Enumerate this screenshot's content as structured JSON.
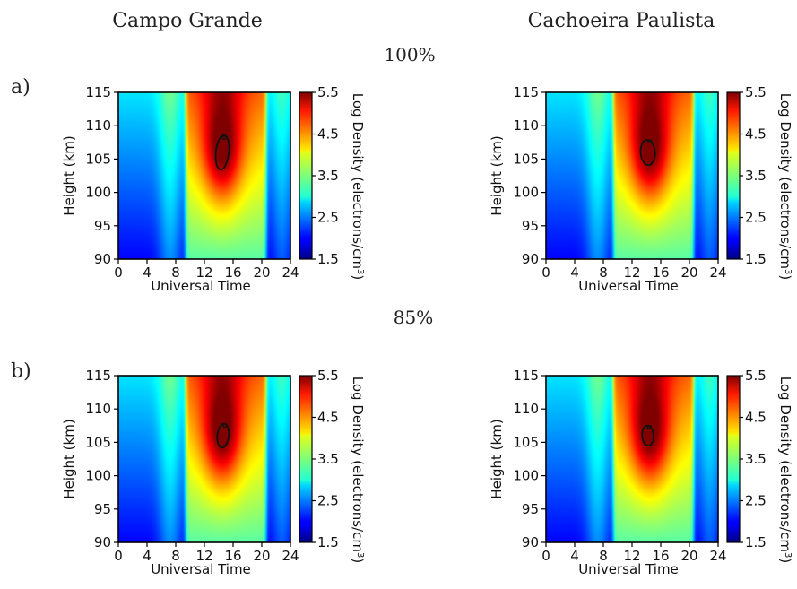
{
  "figure": {
    "column_titles": [
      "Campo Grande",
      "Cachoeira Paulista"
    ],
    "row_labels": [
      "a)",
      "b)"
    ],
    "row_titles": [
      "100%",
      "85%"
    ]
  },
  "axes": {
    "xlabel": "Universal Time",
    "ylabel": "Height (km)",
    "colorbar_label": "Log Density (electrons/cm",
    "colorbar_label_sup": "3",
    "colorbar_label_close": ")",
    "xticks": [
      0,
      4,
      8,
      12,
      16,
      20,
      24
    ],
    "yticks": [
      90,
      95,
      100,
      105,
      110,
      115
    ],
    "cbar_ticks": [
      "1.5",
      "2.5",
      "3.5",
      "4.5",
      "5.5"
    ]
  },
  "colormap": "jet",
  "chart_data": [
    {
      "type": "heatmap",
      "panel": "a) 100% Campo Grande",
      "title": "Campo Grande",
      "xlabel": "Universal Time",
      "ylabel": "Height (km)",
      "xlim": [
        0,
        24
      ],
      "ylim": [
        90,
        115
      ],
      "colorbar": {
        "label": "Log Density (electrons/cm3)",
        "range": [
          1.5,
          5.5
        ]
      },
      "description_values": {
        "peak_time_ut": 14.5,
        "peak_height_km": 106,
        "peak_log_density": 5.5,
        "sunrise_ut": 9.5,
        "sunset_ut": 20.5,
        "night_min_log_density": 2.0
      },
      "contour": {
        "center": [
          14.5,
          106
        ],
        "hw": 0.9,
        "hh": 2.6,
        "tilt": 0.3,
        "blob": true
      }
    },
    {
      "type": "heatmap",
      "panel": "a) 100% Cachoeira Paulista",
      "title": "Cachoeira Paulista",
      "xlabel": "Universal Time",
      "ylabel": "Height (km)",
      "xlim": [
        0,
        24
      ],
      "ylim": [
        90,
        115
      ],
      "colorbar": {
        "label": "Log Density (electrons/cm3)",
        "range": [
          1.5,
          5.5
        ]
      },
      "description_values": {
        "peak_time_ut": 14.5,
        "peak_height_km": 106,
        "peak_log_density": 5.5,
        "sunrise_ut": 9.5,
        "sunset_ut": 20.5,
        "night_min_log_density": 2.0
      },
      "contour": {
        "center": [
          14.2,
          106
        ],
        "hw": 1.0,
        "hh": 1.9,
        "tilt": -0.2,
        "blob": true
      }
    },
    {
      "type": "heatmap",
      "panel": "b) 85% Campo Grande",
      "title": "Campo Grande",
      "xlabel": "Universal Time",
      "ylabel": "Height (km)",
      "xlim": [
        0,
        24
      ],
      "ylim": [
        90,
        115
      ],
      "colorbar": {
        "label": "Log Density (electrons/cm3)",
        "range": [
          1.5,
          5.5
        ]
      },
      "description_values": {
        "peak_time_ut": 14.5,
        "peak_height_km": 106,
        "peak_log_density": 5.5,
        "sunrise_ut": 9.5,
        "sunset_ut": 20.5,
        "night_min_log_density": 2.0
      },
      "contour": {
        "center": [
          14.6,
          106
        ],
        "hw": 0.8,
        "hh": 1.8,
        "tilt": 0.3,
        "blob": true
      }
    },
    {
      "type": "heatmap",
      "panel": "b) 85% Cachoeira Paulista",
      "title": "Cachoeira Paulista",
      "xlabel": "Universal Time",
      "ylabel": "Height (km)",
      "xlim": [
        0,
        24
      ],
      "ylim": [
        90,
        115
      ],
      "colorbar": {
        "label": "Log Density (electrons/cm3)",
        "range": [
          1.5,
          5.5
        ]
      },
      "description_values": {
        "peak_time_ut": 14.5,
        "peak_height_km": 106,
        "peak_log_density": 5.5,
        "sunrise_ut": 9.5,
        "sunset_ut": 20.5,
        "night_min_log_density": 2.0
      },
      "contour": {
        "center": [
          14.2,
          106
        ],
        "hw": 0.8,
        "hh": 1.5,
        "tilt": -0.2,
        "blob": true
      }
    }
  ]
}
